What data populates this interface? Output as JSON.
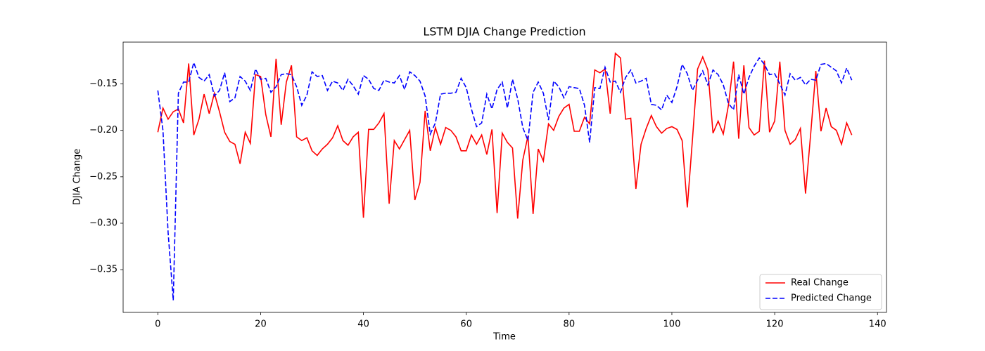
{
  "chart_data": {
    "type": "line",
    "title": "LSTM DJIA Change Prediction",
    "x_label": "Time",
    "y_label": "DJIA Change",
    "xlim": [
      -6.75,
      141.75
    ],
    "ylim": [
      -0.396,
      -0.105
    ],
    "xticks": [
      0,
      20,
      40,
      60,
      80,
      100,
      120,
      140
    ],
    "yticks": [
      {
        "value": -0.35,
        "label": "−0.35"
      },
      {
        "value": -0.3,
        "label": "−0.30"
      },
      {
        "value": -0.25,
        "label": "−0.25"
      },
      {
        "value": -0.2,
        "label": "−0.20"
      },
      {
        "value": -0.15,
        "label": "−0.15"
      }
    ],
    "grid": false,
    "legend": "lower right",
    "x": [
      0,
      1,
      2,
      3,
      4,
      5,
      6,
      7,
      8,
      9,
      10,
      11,
      12,
      13,
      14,
      15,
      16,
      17,
      18,
      19,
      20,
      21,
      22,
      23,
      24,
      25,
      26,
      27,
      28,
      29,
      30,
      31,
      32,
      33,
      34,
      35,
      36,
      37,
      38,
      39,
      40,
      41,
      42,
      43,
      44,
      45,
      46,
      47,
      48,
      49,
      50,
      51,
      52,
      53,
      54,
      55,
      56,
      57,
      58,
      59,
      60,
      61,
      62,
      63,
      64,
      65,
      66,
      67,
      68,
      69,
      70,
      71,
      72,
      73,
      74,
      75,
      76,
      77,
      78,
      79,
      80,
      81,
      82,
      83,
      84,
      85,
      86,
      87,
      88,
      89,
      90,
      91,
      92,
      93,
      94,
      95,
      96,
      97,
      98,
      99,
      100,
      101,
      102,
      103,
      104,
      105,
      106,
      107,
      108,
      109,
      110,
      111,
      112,
      113,
      114,
      115,
      116,
      117,
      118,
      119,
      120,
      121,
      122,
      123,
      124,
      125,
      126,
      127,
      128,
      129,
      130,
      131,
      132,
      133,
      134,
      135
    ],
    "series": [
      {
        "name": "Real Change",
        "color": "#ff0000",
        "linestyle": "solid",
        "values": [
          -0.202,
          -0.176,
          -0.188,
          -0.18,
          -0.177,
          -0.192,
          -0.128,
          -0.205,
          -0.188,
          -0.161,
          -0.182,
          -0.16,
          -0.18,
          -0.202,
          -0.212,
          -0.215,
          -0.236,
          -0.202,
          -0.214,
          -0.14,
          -0.142,
          -0.183,
          -0.207,
          -0.123,
          -0.194,
          -0.148,
          -0.13,
          -0.207,
          -0.211,
          -0.208,
          -0.222,
          -0.227,
          -0.22,
          -0.215,
          -0.208,
          -0.195,
          -0.211,
          -0.216,
          -0.207,
          -0.202,
          -0.294,
          -0.199,
          -0.199,
          -0.192,
          -0.182,
          -0.279,
          -0.211,
          -0.22,
          -0.21,
          -0.2,
          -0.275,
          -0.256,
          -0.179,
          -0.222,
          -0.197,
          -0.215,
          -0.197,
          -0.2,
          -0.207,
          -0.222,
          -0.222,
          -0.205,
          -0.215,
          -0.205,
          -0.226,
          -0.199,
          -0.289,
          -0.203,
          -0.213,
          -0.219,
          -0.295,
          -0.232,
          -0.206,
          -0.29,
          -0.22,
          -0.233,
          -0.193,
          -0.2,
          -0.185,
          -0.176,
          -0.172,
          -0.201,
          -0.201,
          -0.186,
          -0.193,
          -0.135,
          -0.138,
          -0.134,
          -0.182,
          -0.117,
          -0.122,
          -0.188,
          -0.187,
          -0.263,
          -0.215,
          -0.198,
          -0.184,
          -0.196,
          -0.203,
          -0.198,
          -0.196,
          -0.199,
          -0.211,
          -0.283,
          -0.21,
          -0.134,
          -0.121,
          -0.135,
          -0.203,
          -0.19,
          -0.204,
          -0.173,
          -0.126,
          -0.209,
          -0.13,
          -0.197,
          -0.205,
          -0.201,
          -0.125,
          -0.202,
          -0.19,
          -0.126,
          -0.2,
          -0.215,
          -0.21,
          -0.198,
          -0.268,
          -0.204,
          -0.136,
          -0.201,
          -0.176,
          -0.196,
          -0.2,
          -0.215,
          -0.192,
          -0.205
        ]
      },
      {
        "name": "Predicted Change",
        "color": "#0000ff",
        "linestyle": "dashed",
        "values": [
          -0.157,
          -0.2,
          -0.31,
          -0.383,
          -0.16,
          -0.148,
          -0.148,
          -0.127,
          -0.143,
          -0.147,
          -0.14,
          -0.163,
          -0.157,
          -0.138,
          -0.169,
          -0.165,
          -0.142,
          -0.147,
          -0.157,
          -0.134,
          -0.145,
          -0.144,
          -0.159,
          -0.153,
          -0.14,
          -0.139,
          -0.14,
          -0.153,
          -0.173,
          -0.162,
          -0.137,
          -0.142,
          -0.141,
          -0.157,
          -0.147,
          -0.149,
          -0.157,
          -0.145,
          -0.152,
          -0.161,
          -0.141,
          -0.145,
          -0.155,
          -0.157,
          -0.146,
          -0.148,
          -0.149,
          -0.141,
          -0.156,
          -0.137,
          -0.141,
          -0.147,
          -0.163,
          -0.204,
          -0.192,
          -0.161,
          -0.16,
          -0.16,
          -0.159,
          -0.144,
          -0.154,
          -0.177,
          -0.196,
          -0.192,
          -0.161,
          -0.177,
          -0.156,
          -0.148,
          -0.176,
          -0.145,
          -0.166,
          -0.197,
          -0.211,
          -0.159,
          -0.148,
          -0.16,
          -0.189,
          -0.147,
          -0.153,
          -0.165,
          -0.153,
          -0.154,
          -0.155,
          -0.173,
          -0.213,
          -0.154,
          -0.155,
          -0.132,
          -0.148,
          -0.147,
          -0.159,
          -0.143,
          -0.135,
          -0.149,
          -0.147,
          -0.144,
          -0.172,
          -0.173,
          -0.178,
          -0.162,
          -0.17,
          -0.153,
          -0.129,
          -0.139,
          -0.157,
          -0.146,
          -0.136,
          -0.151,
          -0.135,
          -0.14,
          -0.151,
          -0.171,
          -0.178,
          -0.14,
          -0.161,
          -0.143,
          -0.131,
          -0.122,
          -0.129,
          -0.14,
          -0.139,
          -0.15,
          -0.162,
          -0.139,
          -0.146,
          -0.143,
          -0.151,
          -0.145,
          -0.146,
          -0.129,
          -0.128,
          -0.132,
          -0.136,
          -0.149,
          -0.133,
          -0.146
        ]
      }
    ]
  }
}
